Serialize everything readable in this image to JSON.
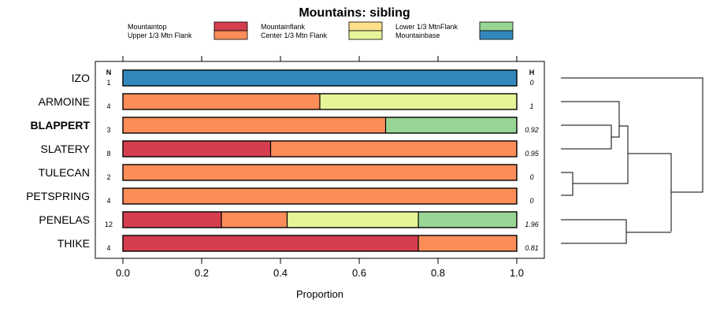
{
  "chart_data": {
    "type": "stacked-bar-horizontal",
    "title": "Mountains: sibling",
    "xlabel": "Proportion",
    "xlim": [
      0,
      1
    ],
    "xticks": [
      "0.0",
      "0.2",
      "0.4",
      "0.6",
      "0.8",
      "1.0"
    ],
    "n_header": "N",
    "h_header": "H",
    "legend": [
      {
        "name": "Mountaintop",
        "color": "#d53e4f"
      },
      {
        "name": "Upper 1/3 Mtn Flank",
        "color": "#fc8d59"
      },
      {
        "name": "Mountainflank",
        "color": "#fee08b"
      },
      {
        "name": "Center 1/3 Mtn Flank",
        "color": "#e6f598"
      },
      {
        "name": "Lower 1/3 MtnFlank",
        "color": "#99d594"
      },
      {
        "name": "Mountainbase",
        "color": "#3288bd"
      }
    ],
    "rows": [
      {
        "label": "IZO",
        "n": "1",
        "h": "0",
        "bold": false,
        "segments": [
          {
            "cat": 5,
            "value": 1.0
          }
        ]
      },
      {
        "label": "ARMOINE",
        "n": "4",
        "h": "1",
        "bold": false,
        "segments": [
          {
            "cat": 1,
            "value": 0.5
          },
          {
            "cat": 3,
            "value": 0.5
          }
        ]
      },
      {
        "label": "BLAPPERT",
        "n": "3",
        "h": "0.92",
        "bold": true,
        "segments": [
          {
            "cat": 1,
            "value": 0.667
          },
          {
            "cat": 4,
            "value": 0.333
          }
        ]
      },
      {
        "label": "SLATERY",
        "n": "8",
        "h": "0.95",
        "bold": false,
        "segments": [
          {
            "cat": 0,
            "value": 0.375
          },
          {
            "cat": 1,
            "value": 0.625
          }
        ]
      },
      {
        "label": "TULECAN",
        "n": "2",
        "h": "0",
        "bold": false,
        "segments": [
          {
            "cat": 1,
            "value": 1.0
          }
        ]
      },
      {
        "label": "PETSPRING",
        "n": "4",
        "h": "0",
        "bold": false,
        "segments": [
          {
            "cat": 1,
            "value": 1.0
          }
        ]
      },
      {
        "label": "PENELAS",
        "n": "12",
        "h": "1.96",
        "bold": false,
        "segments": [
          {
            "cat": 0,
            "value": 0.25
          },
          {
            "cat": 1,
            "value": 0.167
          },
          {
            "cat": 3,
            "value": 0.333
          },
          {
            "cat": 4,
            "value": 0.25
          }
        ]
      },
      {
        "label": "THIKE",
        "n": "4",
        "h": "0.81",
        "bold": false,
        "segments": [
          {
            "cat": 0,
            "value": 0.75
          },
          {
            "cat": 1,
            "value": 0.25
          }
        ]
      }
    ]
  }
}
